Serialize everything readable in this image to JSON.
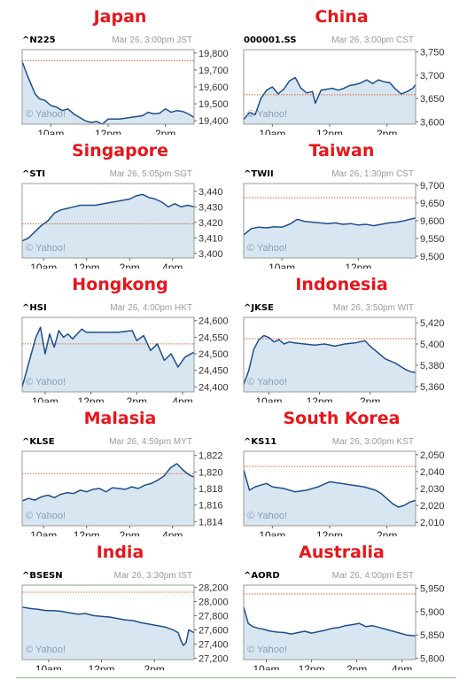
{
  "colors": {
    "title": "#e8151b",
    "line": "#1f4e8c",
    "fill": "#d7e6f1",
    "prev_close": "#e0632a",
    "frame": "#999999"
  },
  "chart_data": [
    {
      "type": "area",
      "title": "Japan",
      "ticker": "^N225",
      "meta": "Mar 26, 3:00pm JST",
      "watermark": "© Yahoo!",
      "ylim": [
        19380,
        19820
      ],
      "prev_close": 19755,
      "y_ticks": [
        "19,800",
        "19,700",
        "19,600",
        "19,500",
        "19,400"
      ],
      "y_tick_values": [
        19800,
        19700,
        19600,
        19500,
        19400
      ],
      "x_ticks": [
        "10am",
        "12pm",
        "2pm"
      ],
      "x_tick_values": [
        1,
        3,
        5
      ],
      "xlim": [
        0,
        6
      ],
      "x": [
        0,
        0.15,
        0.3,
        0.45,
        0.6,
        0.8,
        1.0,
        1.2,
        1.4,
        1.6,
        1.8,
        2.0,
        2.2,
        2.4,
        2.6,
        2.8,
        3.0,
        3.4,
        3.8,
        4.2,
        4.4,
        4.6,
        4.8,
        5.0,
        5.2,
        5.4,
        5.6,
        5.8,
        6.0
      ],
      "y": [
        19750,
        19680,
        19620,
        19560,
        19530,
        19520,
        19490,
        19480,
        19460,
        19470,
        19440,
        19420,
        19400,
        19390,
        19395,
        19380,
        19410,
        19410,
        19420,
        19430,
        19450,
        19440,
        19445,
        19470,
        19450,
        19460,
        19455,
        19440,
        19420
      ]
    },
    {
      "type": "area",
      "title": "China",
      "ticker": "000001.SS",
      "meta": "Mar 26, 3:00pm CST",
      "watermark": "© Yahoo!",
      "ylim": [
        3595,
        3755
      ],
      "prev_close": 3658,
      "y_ticks": [
        "3,750",
        "3,700",
        "3,650",
        "3,600"
      ],
      "y_tick_values": [
        3750,
        3700,
        3650,
        3600
      ],
      "x_ticks": [
        "10am",
        "12pm",
        "2pm"
      ],
      "x_tick_values": [
        1,
        3,
        5
      ],
      "xlim": [
        0,
        6
      ],
      "x": [
        0,
        0.2,
        0.4,
        0.6,
        0.8,
        1.0,
        1.2,
        1.4,
        1.6,
        1.8,
        2.0,
        2.2,
        2.4,
        2.5,
        2.7,
        2.9,
        3.1,
        3.3,
        3.5,
        3.7,
        3.9,
        4.1,
        4.3,
        4.5,
        4.7,
        4.9,
        5.1,
        5.3,
        5.5,
        5.7,
        5.9,
        6.0
      ],
      "y": [
        3605,
        3620,
        3615,
        3650,
        3668,
        3675,
        3660,
        3670,
        3688,
        3695,
        3672,
        3662,
        3665,
        3640,
        3668,
        3670,
        3672,
        3668,
        3672,
        3678,
        3680,
        3684,
        3690,
        3682,
        3690,
        3686,
        3684,
        3670,
        3660,
        3665,
        3672,
        3680
      ]
    },
    {
      "type": "area",
      "title": "Singapore",
      "ticker": "^STI",
      "meta": "Mar 26, 5:05pm SGT",
      "watermark": "© Yahoo!",
      "ylim": [
        3397,
        3445
      ],
      "prev_close": 3419,
      "y_ticks": [
        "3,440",
        "3,430",
        "3,420",
        "3,410",
        "3,400"
      ],
      "y_tick_values": [
        3440,
        3430,
        3420,
        3410,
        3400
      ],
      "x_ticks": [
        "10am",
        "12pm",
        "2pm",
        "4pm"
      ],
      "x_tick_values": [
        1,
        3,
        5,
        7
      ],
      "xlim": [
        0,
        8
      ],
      "x": [
        0,
        0.3,
        0.6,
        0.9,
        1.2,
        1.5,
        1.8,
        2.1,
        2.4,
        2.7,
        3.0,
        3.4,
        3.8,
        4.2,
        4.6,
        5.0,
        5.3,
        5.6,
        5.9,
        6.2,
        6.5,
        6.8,
        7.1,
        7.4,
        7.7,
        8.0
      ],
      "y": [
        3408,
        3410,
        3414,
        3418,
        3421,
        3426,
        3428,
        3429,
        3430,
        3431,
        3431,
        3431,
        3432,
        3433,
        3434,
        3435,
        3437,
        3438,
        3436,
        3435,
        3433,
        3430,
        3432,
        3430,
        3431,
        3430
      ]
    },
    {
      "type": "area",
      "title": "Taiwan",
      "ticker": "^TWII",
      "meta": "Mar 26, 1:30pm CST",
      "watermark": "© Yahoo!",
      "ylim": [
        9495,
        9705
      ],
      "prev_close": 9665,
      "y_ticks": [
        "9,700",
        "9,650",
        "9,600",
        "9,550",
        "9,500"
      ],
      "y_tick_values": [
        9700,
        9650,
        9600,
        9550,
        9500
      ],
      "x_ticks": [
        "10am",
        "12pm"
      ],
      "x_tick_values": [
        1,
        3
      ],
      "xlim": [
        0,
        4.5
      ],
      "x": [
        0,
        0.2,
        0.4,
        0.6,
        0.8,
        1.0,
        1.2,
        1.4,
        1.6,
        1.8,
        2.0,
        2.2,
        2.4,
        2.6,
        2.8,
        3.0,
        3.2,
        3.4,
        3.6,
        3.8,
        4.0,
        4.2,
        4.5
      ],
      "y": [
        9560,
        9578,
        9582,
        9580,
        9583,
        9582,
        9590,
        9604,
        9598,
        9596,
        9594,
        9592,
        9594,
        9590,
        9592,
        9588,
        9590,
        9586,
        9590,
        9594,
        9596,
        9600,
        9608
      ]
    },
    {
      "type": "area",
      "title": "Hongkong",
      "ticker": "^HSI",
      "meta": "Mar 26, 4:00pm HKT",
      "watermark": "© Yahoo!",
      "ylim": [
        24385,
        24610
      ],
      "prev_close": 24530,
      "y_ticks": [
        "24,600",
        "24,550",
        "24,500",
        "24,450",
        "24,400"
      ],
      "y_tick_values": [
        24600,
        24550,
        24500,
        24450,
        24400
      ],
      "x_ticks": [
        "10am",
        "12pm",
        "2pm",
        "4pm"
      ],
      "x_tick_values": [
        1,
        3,
        5,
        7
      ],
      "xlim": [
        0,
        7.5
      ],
      "x": [
        0,
        0.2,
        0.4,
        0.6,
        0.8,
        1.0,
        1.2,
        1.4,
        1.6,
        1.8,
        2.0,
        2.2,
        2.4,
        2.6,
        2.8,
        3.0,
        3.6,
        4.2,
        4.8,
        5.0,
        5.3,
        5.6,
        5.9,
        6.2,
        6.5,
        6.8,
        7.1,
        7.5
      ],
      "y": [
        24400,
        24450,
        24500,
        24550,
        24580,
        24500,
        24560,
        24520,
        24570,
        24550,
        24560,
        24545,
        24560,
        24575,
        24565,
        24565,
        24565,
        24565,
        24570,
        24540,
        24555,
        24510,
        24530,
        24480,
        24500,
        24460,
        24490,
        24505
      ]
    },
    {
      "type": "area",
      "title": "Indonesia",
      "ticker": "^JKSE",
      "meta": "Mar 26, 3:50pm WIT",
      "watermark": "© Yahoo!",
      "ylim": [
        5355,
        5425
      ],
      "prev_close": 5405,
      "y_ticks": [
        "5,420",
        "5,400",
        "5,380",
        "5,360"
      ],
      "y_tick_values": [
        5420,
        5400,
        5380,
        5360
      ],
      "x_ticks": [
        "10am",
        "12pm",
        "2pm"
      ],
      "x_tick_values": [
        1,
        3,
        5
      ],
      "xlim": [
        0,
        6.8
      ],
      "x": [
        0,
        0.2,
        0.4,
        0.6,
        0.8,
        1.0,
        1.2,
        1.4,
        1.6,
        1.8,
        2.0,
        2.4,
        2.8,
        3.2,
        3.6,
        4.0,
        4.4,
        4.8,
        5.0,
        5.2,
        5.4,
        5.6,
        5.8,
        6.0,
        6.2,
        6.4,
        6.6,
        6.8
      ],
      "y": [
        5362,
        5375,
        5395,
        5404,
        5408,
        5406,
        5402,
        5404,
        5400,
        5402,
        5401,
        5400,
        5399,
        5400,
        5398,
        5400,
        5401,
        5403,
        5398,
        5394,
        5390,
        5386,
        5384,
        5382,
        5379,
        5376,
        5374,
        5373
      ]
    },
    {
      "type": "area",
      "title": "Malasia",
      "ticker": "^KLSE",
      "meta": "Mar 26, 4:59pm MYT",
      "watermark": "© Yahoo!",
      "ylim": [
        1813.5,
        1822.5
      ],
      "prev_close": 1819.8,
      "y_ticks": [
        "1,822",
        "1,820",
        "1,818",
        "1,816",
        "1,814"
      ],
      "y_tick_values": [
        1822,
        1820,
        1818,
        1816,
        1814
      ],
      "x_ticks": [
        "10am",
        "12pm",
        "2pm",
        "4pm"
      ],
      "x_tick_values": [
        1,
        3,
        5,
        7
      ],
      "xlim": [
        0,
        8
      ],
      "x": [
        0,
        0.3,
        0.6,
        0.9,
        1.2,
        1.5,
        1.8,
        2.1,
        2.4,
        2.7,
        3.0,
        3.3,
        3.6,
        3.9,
        4.2,
        4.5,
        4.8,
        5.1,
        5.4,
        5.7,
        6.0,
        6.3,
        6.6,
        6.9,
        7.2,
        7.5,
        7.8,
        8.0
      ],
      "y": [
        1816.5,
        1816.8,
        1816.6,
        1817.0,
        1817.2,
        1816.9,
        1817.3,
        1817.5,
        1817.4,
        1817.8,
        1817.6,
        1817.9,
        1818.0,
        1817.6,
        1818.1,
        1818.0,
        1817.9,
        1818.2,
        1818.0,
        1818.4,
        1818.6,
        1819.0,
        1819.5,
        1820.5,
        1821.0,
        1820.2,
        1819.6,
        1819.4
      ]
    },
    {
      "type": "area",
      "title": "South Korea",
      "ticker": "^KS11",
      "meta": "Mar 26, 3:00pm KST",
      "watermark": "© Yahoo!",
      "ylim": [
        2008,
        2052
      ],
      "prev_close": 2043,
      "y_ticks": [
        "2,050",
        "2,040",
        "2,030",
        "2,020",
        "2,010"
      ],
      "y_tick_values": [
        2050,
        2040,
        2030,
        2020,
        2010
      ],
      "x_ticks": [
        "10am",
        "12pm",
        "2pm"
      ],
      "x_tick_values": [
        1,
        3,
        5
      ],
      "xlim": [
        0,
        6
      ],
      "x": [
        0,
        0.2,
        0.4,
        0.6,
        0.8,
        1.0,
        1.4,
        1.8,
        2.2,
        2.6,
        3.0,
        3.4,
        3.8,
        4.2,
        4.6,
        4.8,
        5.0,
        5.2,
        5.4,
        5.6,
        5.8,
        6.0
      ],
      "y": [
        2041,
        2029,
        2031,
        2032,
        2033,
        2031,
        2030,
        2028,
        2029,
        2031,
        2034,
        2033,
        2032,
        2031,
        2029,
        2027,
        2024,
        2021,
        2019,
        2020,
        2022,
        2023
      ]
    },
    {
      "type": "area",
      "title": "India",
      "ticker": "^BSESN",
      "meta": "Mar 26, 3:30pm IST",
      "watermark": "© Yahoo!",
      "ylim": [
        27180,
        28230
      ],
      "prev_close": 28130,
      "y_ticks": [
        "28,200",
        "28,000",
        "27,800",
        "27,600",
        "27,400",
        "27,200"
      ],
      "y_tick_values": [
        28200,
        28000,
        27800,
        27600,
        27400,
        27200
      ],
      "x_ticks": [
        "10am",
        "12pm",
        "2pm"
      ],
      "x_tick_values": [
        1,
        3,
        5
      ],
      "xlim": [
        0,
        6.5
      ],
      "x": [
        0,
        0.3,
        0.6,
        0.9,
        1.2,
        1.5,
        1.8,
        2.1,
        2.4,
        2.7,
        3.0,
        3.3,
        3.6,
        3.9,
        4.2,
        4.5,
        4.8,
        5.1,
        5.4,
        5.7,
        5.9,
        6.0,
        6.1,
        6.2,
        6.3,
        6.4,
        6.5
      ],
      "y": [
        27920,
        27900,
        27890,
        27870,
        27870,
        27860,
        27840,
        27820,
        27830,
        27800,
        27790,
        27780,
        27760,
        27740,
        27730,
        27700,
        27680,
        27660,
        27640,
        27600,
        27560,
        27450,
        27380,
        27420,
        27600,
        27580,
        27560
      ]
    },
    {
      "type": "area",
      "title": "Australia",
      "ticker": "^AORD",
      "meta": "Mar 26, 4:00pm EST",
      "watermark": "© Yahoo!",
      "ylim": [
        5797,
        5957
      ],
      "prev_close": 5938,
      "y_ticks": [
        "5,950",
        "5,900",
        "5,850",
        "5,800"
      ],
      "y_tick_values": [
        5950,
        5900,
        5850,
        5800
      ],
      "x_ticks": [
        "10am",
        "12pm",
        "2pm",
        "4pm"
      ],
      "x_tick_values": [
        1,
        3,
        5,
        7
      ],
      "xlim": [
        0,
        7.6
      ],
      "x": [
        0,
        0.2,
        0.4,
        0.6,
        0.9,
        1.2,
        1.5,
        1.8,
        2.1,
        2.4,
        2.7,
        3.0,
        3.3,
        3.6,
        3.9,
        4.2,
        4.5,
        4.8,
        5.1,
        5.4,
        5.7,
        6.0,
        6.3,
        6.6,
        6.9,
        7.2,
        7.6
      ],
      "y": [
        5910,
        5875,
        5868,
        5865,
        5862,
        5858,
        5856,
        5855,
        5852,
        5855,
        5858,
        5854,
        5857,
        5860,
        5864,
        5866,
        5870,
        5872,
        5875,
        5868,
        5870,
        5866,
        5862,
        5858,
        5854,
        5850,
        5848
      ]
    }
  ]
}
